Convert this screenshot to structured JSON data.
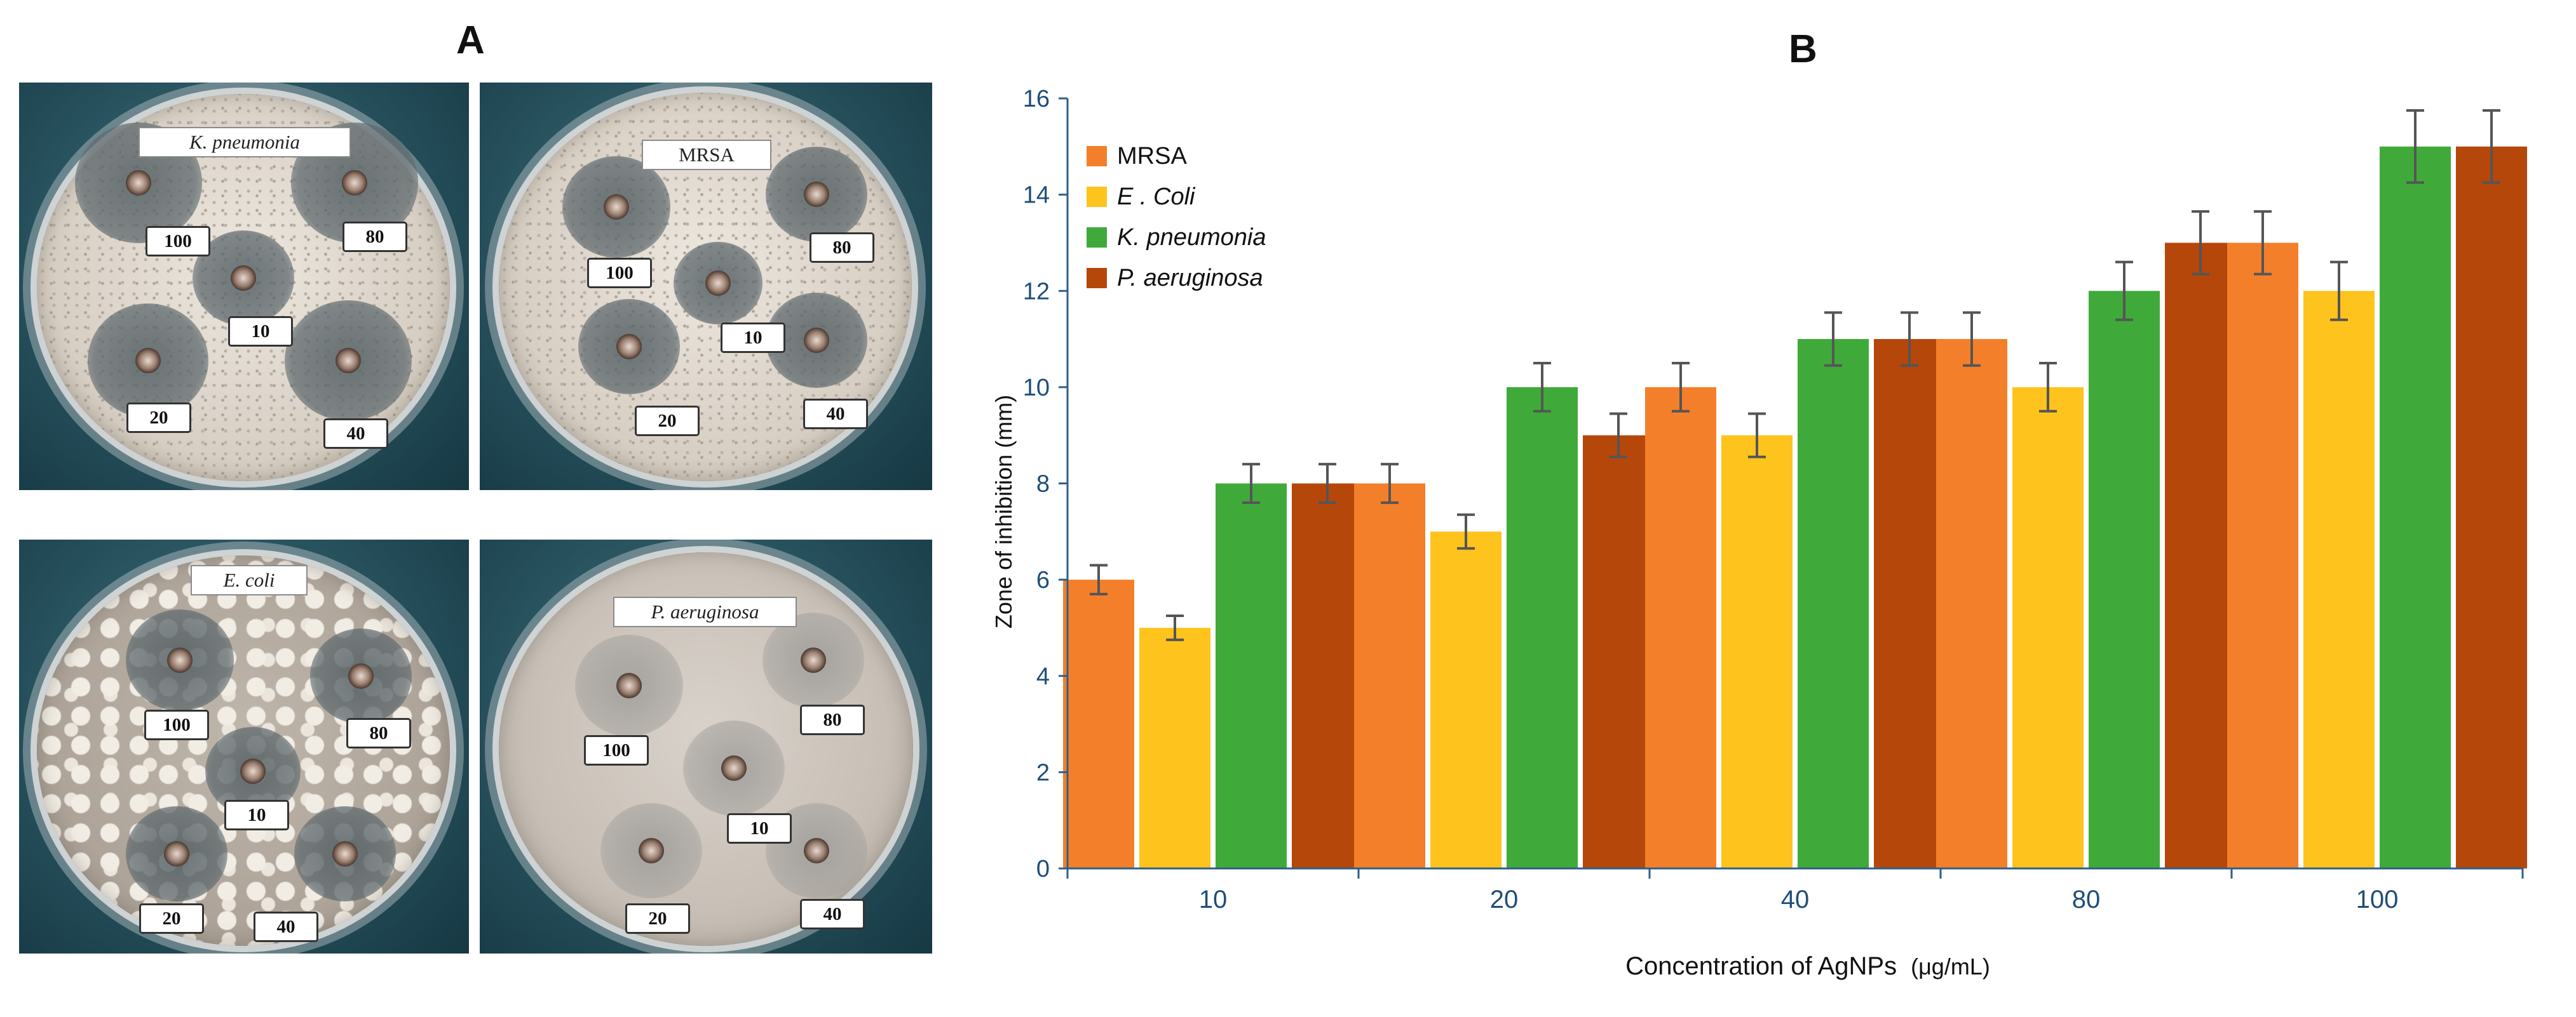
{
  "panel_a": {
    "label": "A",
    "plates": [
      {
        "name": "K. pneumonia",
        "italic": true,
        "wells": [
          "100",
          "80",
          "10",
          "20",
          "40"
        ]
      },
      {
        "name": "MRSA",
        "italic": false,
        "wells": [
          "100",
          "80",
          "10",
          "20",
          "40"
        ]
      },
      {
        "name": "E. coli",
        "italic": true,
        "wells": [
          "100",
          "80",
          "10",
          "20",
          "40"
        ]
      },
      {
        "name": "P. aeruginosa",
        "italic": true,
        "wells": [
          "100",
          "80",
          "10",
          "20",
          "40"
        ]
      }
    ]
  },
  "panel_b": {
    "label": "B"
  },
  "chart_data": {
    "type": "bar",
    "title": "",
    "xlabel": "Concentration of AgNPs",
    "xlabel_unit": "(μg/mL)",
    "ylabel": "Zone of inhibition (mm)",
    "ylim": [
      0,
      16
    ],
    "yticks": [
      0,
      2,
      4,
      6,
      8,
      10,
      12,
      14,
      16
    ],
    "categories": [
      "10",
      "20",
      "40",
      "80",
      "100"
    ],
    "legend_position": "top-left",
    "series": [
      {
        "name": "MRSA",
        "color": "#F47F2A",
        "values": [
          6,
          8,
          10,
          11,
          13
        ],
        "errors": [
          0.3,
          0.4,
          0.5,
          0.55,
          0.65
        ]
      },
      {
        "name": "E . Coli",
        "color": "#FFC31E",
        "values": [
          5,
          7,
          9,
          10,
          12
        ],
        "errors": [
          0.25,
          0.35,
          0.45,
          0.5,
          0.6
        ]
      },
      {
        "name": "K. pneumonia",
        "color": "#3FAA3A",
        "values": [
          8,
          10,
          11,
          12,
          15
        ],
        "errors": [
          0.4,
          0.5,
          0.55,
          0.6,
          0.75
        ]
      },
      {
        "name": "P. aeruginosa",
        "color": "#B5470B",
        "values": [
          8,
          9,
          11,
          13,
          15
        ],
        "errors": [
          0.4,
          0.45,
          0.55,
          0.65,
          0.75
        ]
      }
    ]
  }
}
